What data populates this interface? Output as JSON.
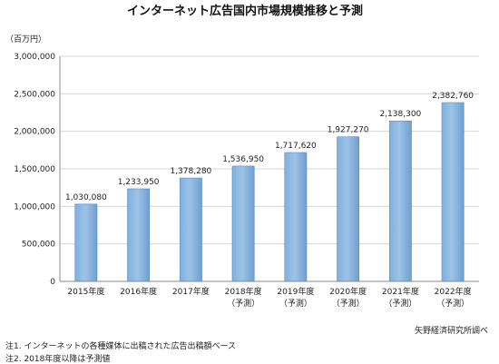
{
  "chart_data": {
    "type": "bar",
    "title": "インターネット広告国内市場規模推移と予測",
    "unit_label": "（百万円）",
    "categories": [
      [
        "2015年度"
      ],
      [
        "2016年度"
      ],
      [
        "2017年度"
      ],
      [
        "2018年度",
        "（予測）"
      ],
      [
        "2019年度",
        "（予測）"
      ],
      [
        "2020年度",
        "（予測）"
      ],
      [
        "2021年度",
        "（予測）"
      ],
      [
        "2022年度",
        "（予測）"
      ]
    ],
    "values": [
      1030080,
      1233950,
      1378280,
      1536950,
      1717620,
      1927270,
      2138300,
      2382760
    ],
    "value_labels": [
      "1,030,080",
      "1,233,950",
      "1,378,280",
      "1,536,950",
      "1,717,620",
      "1,927,270",
      "2,138,300",
      "2,382,760"
    ],
    "ylim": [
      0,
      3000000
    ],
    "y_ticks": [
      0,
      500000,
      1000000,
      1500000,
      2000000,
      2500000,
      3000000
    ],
    "y_tick_labels": [
      "0",
      "500,000",
      "1,000,000",
      "1,500,000",
      "2,000,000",
      "2,500,000",
      "3,000,000"
    ],
    "grid": true,
    "bar_color": "#9dc3e6"
  },
  "source": "矢野経済研究所調べ",
  "notes": [
    "注1. インターネットの各種媒体に出稿された広告出稿額ベース",
    "注2. 2018年度以降は予測値"
  ]
}
